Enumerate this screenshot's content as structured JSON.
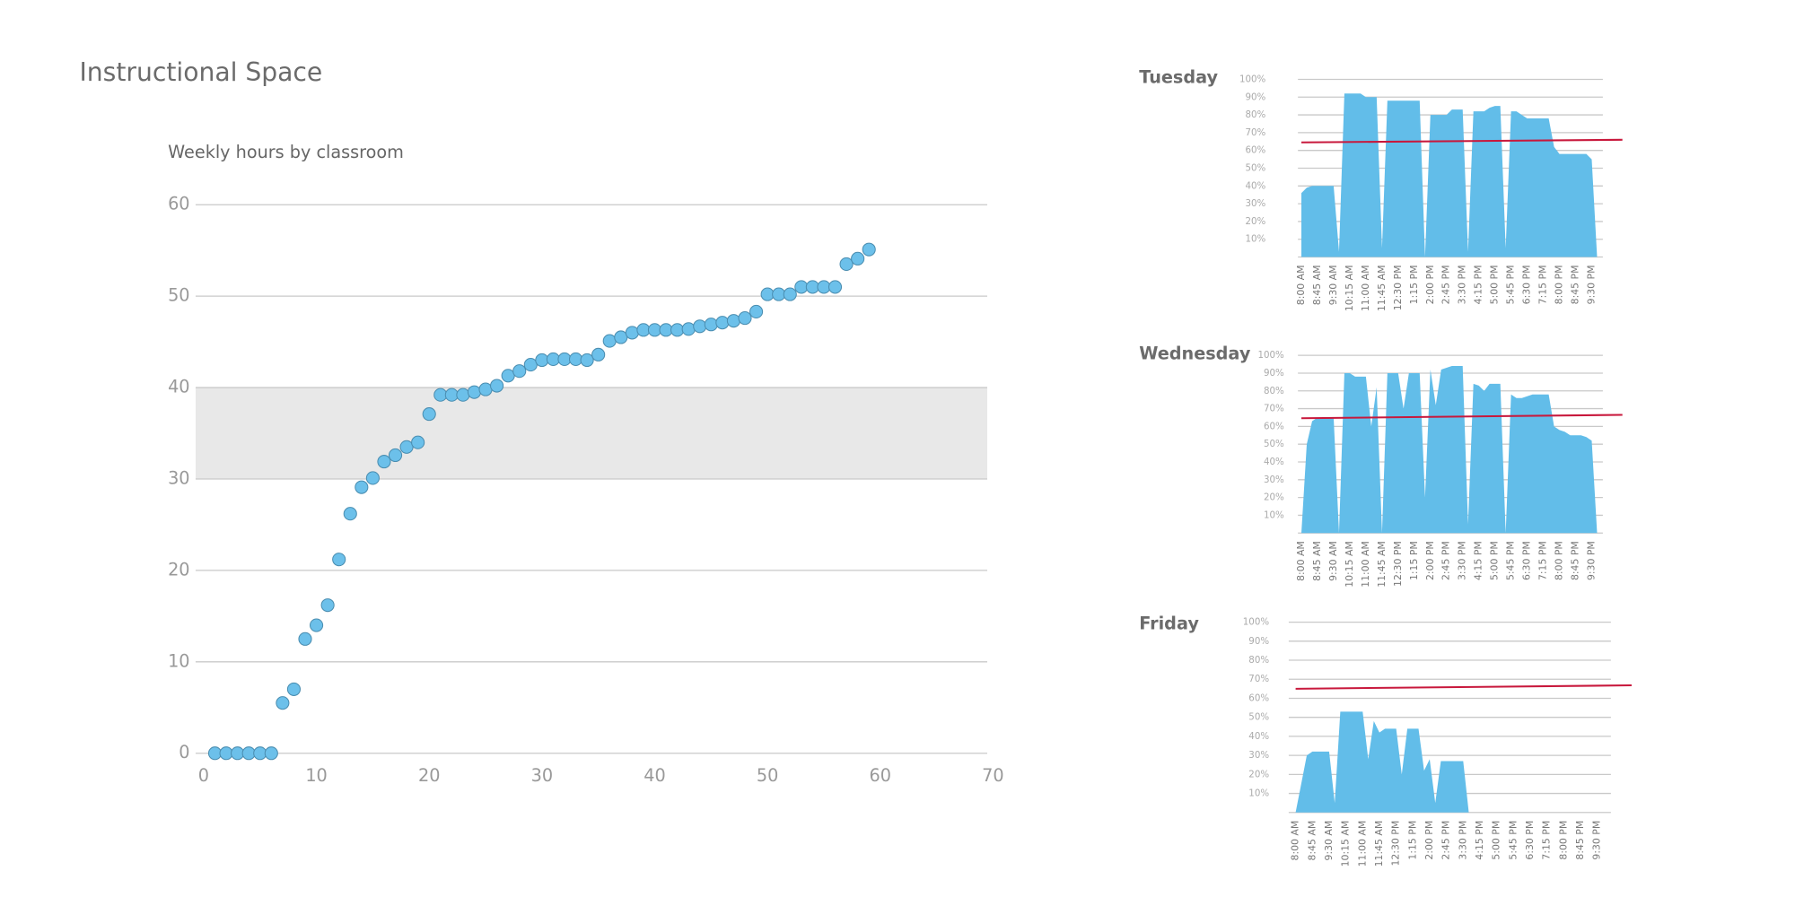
{
  "header": {
    "title": "Instructional Space"
  },
  "chart_data": [
    {
      "type": "scatter",
      "title": "Weekly hours by classroom",
      "x": [
        1,
        2,
        3,
        4,
        5,
        6,
        7,
        8,
        9,
        10,
        11,
        12,
        13,
        14,
        15,
        16,
        17,
        18,
        19,
        20,
        21,
        22,
        23,
        24,
        25,
        26,
        27,
        28,
        29,
        30,
        31,
        32,
        33,
        34,
        35,
        36,
        37,
        38,
        39,
        40,
        41,
        42,
        43,
        44,
        45,
        46,
        47,
        48,
        49,
        50,
        51,
        52,
        53,
        54,
        55,
        56,
        57,
        58,
        59
      ],
      "values": [
        0,
        0,
        0,
        0,
        0,
        0,
        5.5,
        7,
        12.5,
        14,
        16.2,
        21.2,
        26.2,
        29.1,
        30.1,
        31.9,
        32.6,
        33.5,
        34,
        37.1,
        39.2,
        39.2,
        39.2,
        39.5,
        39.8,
        40.2,
        41.3,
        41.8,
        42.5,
        43,
        43.1,
        43.1,
        43.1,
        43,
        43.6,
        45.1,
        45.5,
        46,
        46.3,
        46.3,
        46.3,
        46.3,
        46.4,
        46.7,
        46.9,
        47.1,
        47.3,
        47.6,
        48.3,
        50.2,
        50.2,
        50.2,
        51,
        51,
        51,
        51,
        53.5,
        54.1,
        55.1
      ],
      "color": "#6cc0ea",
      "xlim": [
        0,
        70
      ],
      "xticks": [
        0,
        10,
        20,
        30,
        40,
        50,
        60,
        70
      ],
      "ylim": [
        0,
        60
      ],
      "yticks": [
        0,
        10,
        20,
        30,
        40,
        50,
        60
      ],
      "grid": true,
      "band": {
        "range": [
          30,
          40
        ],
        "color": "#e8e8e8"
      }
    },
    {
      "type": "area",
      "title": "Tuesday",
      "categories": [
        "8:00 AM",
        null,
        null,
        "8:45 AM",
        null,
        null,
        "9:30 AM",
        null,
        null,
        "10:15 AM",
        null,
        null,
        "11:00 AM",
        null,
        null,
        "11:45 AM",
        null,
        null,
        "12:30 PM",
        null,
        null,
        "1:15 PM",
        null,
        null,
        "2:00 PM",
        null,
        null,
        "2:45 PM",
        null,
        null,
        "3:30 PM",
        null,
        null,
        "4:15 PM",
        null,
        null,
        "5:00 PM",
        null,
        null,
        "5:45 PM",
        null,
        null,
        "6:30 PM",
        null,
        null,
        "7:15 PM",
        null,
        null,
        "8:00 PM",
        null,
        null,
        "8:45 PM",
        null,
        null,
        "9:30 PM",
        null
      ],
      "values": [
        36,
        39,
        40,
        40,
        40,
        40,
        40,
        3,
        92,
        92,
        92,
        92,
        90,
        90,
        90,
        5,
        88,
        88,
        88,
        88,
        88,
        88,
        88,
        0,
        80,
        80,
        80,
        80,
        83,
        83,
        83,
        3,
        82,
        82,
        82,
        84,
        85,
        85,
        5,
        82,
        82,
        80,
        78,
        78,
        78,
        78,
        78,
        62,
        58,
        58,
        58,
        58,
        58,
        58,
        55,
        0
      ],
      "color": "#62bde9",
      "ylim": [
        0,
        100
      ],
      "yticks": [
        {
          "value": 10,
          "label": "10%"
        },
        {
          "value": 20,
          "label": "20%"
        },
        {
          "value": 30,
          "label": "30%"
        },
        {
          "value": 40,
          "label": "40%"
        },
        {
          "value": 50,
          "label": "50%"
        },
        {
          "value": 60,
          "label": "60%"
        },
        {
          "value": 70,
          "label": "70%"
        },
        {
          "value": 80,
          "label": "80%"
        },
        {
          "value": 90,
          "label": "90%"
        },
        {
          "value": 100,
          "label": "100%"
        }
      ],
      "grid": true,
      "reference_line": {
        "values": [
          64.5,
          66
        ],
        "color": "#c8183c"
      }
    },
    {
      "type": "area",
      "title": "Wednesday",
      "categories": [
        "8:00 AM",
        null,
        null,
        "8:45 AM",
        null,
        null,
        "9:30 AM",
        null,
        null,
        "10:15 AM",
        null,
        null,
        "11:00 AM",
        null,
        null,
        "11:45 AM",
        null,
        null,
        "12:30 PM",
        null,
        null,
        "1:15 PM",
        null,
        null,
        "2:00 PM",
        null,
        null,
        "2:45 PM",
        null,
        null,
        "3:30 PM",
        null,
        null,
        "4:15 PM",
        null,
        null,
        "5:00 PM",
        null,
        null,
        "5:45 PM",
        null,
        null,
        "6:30 PM",
        null,
        null,
        "7:15 PM",
        null,
        null,
        "8:00 PM",
        null,
        null,
        "8:45 PM",
        null,
        null,
        "9:30 PM",
        null
      ],
      "values": [
        0,
        50,
        63,
        65,
        65,
        65,
        65,
        0,
        90,
        90,
        88,
        88,
        88,
        60,
        82,
        0,
        90,
        90,
        90,
        70,
        90,
        90,
        90,
        20,
        92,
        72,
        92,
        93,
        94,
        94,
        94,
        5,
        84,
        83,
        80,
        84,
        84,
        84,
        0,
        78,
        76,
        76,
        77,
        78,
        78,
        78,
        78,
        60,
        58,
        57,
        55,
        55,
        55,
        54,
        52,
        0
      ],
      "color": "#62bde9",
      "ylim": [
        0,
        100
      ],
      "yticks": [
        {
          "value": 10,
          "label": "10%"
        },
        {
          "value": 20,
          "label": "20%"
        },
        {
          "value": 30,
          "label": "30%"
        },
        {
          "value": 40,
          "label": "40%"
        },
        {
          "value": 50,
          "label": "50%"
        },
        {
          "value": 60,
          "label": "60%"
        },
        {
          "value": 70,
          "label": "70%"
        },
        {
          "value": 80,
          "label": "80%"
        },
        {
          "value": 90,
          "label": "90%"
        },
        {
          "value": 100,
          "label": "100%"
        }
      ],
      "grid": true,
      "reference_line": {
        "values": [
          64.6,
          66.5
        ],
        "color": "#c8183c"
      }
    },
    {
      "type": "area",
      "title": "Friday",
      "categories": [
        "8:00 AM",
        null,
        null,
        "8:45 AM",
        null,
        null,
        "9:30 AM",
        null,
        null,
        "10:15 AM",
        null,
        null,
        "11:00 AM",
        null,
        null,
        "11:45 AM",
        null,
        null,
        "12:30 PM",
        null,
        null,
        "1:15 PM",
        null,
        null,
        "2:00 PM",
        null,
        null,
        "2:45 PM",
        null,
        null,
        "3:30 PM",
        null,
        null,
        "4:15 PM",
        null,
        null,
        "5:00 PM",
        null,
        null,
        "5:45 PM",
        null,
        null,
        "6:30 PM",
        null,
        null,
        "7:15 PM",
        null,
        null,
        "8:00 PM",
        null,
        null,
        "8:45 PM",
        null,
        null,
        "9:30 PM",
        null
      ],
      "values": [
        0,
        15,
        30,
        32,
        32,
        32,
        32,
        5,
        53,
        53,
        53,
        53,
        53,
        28,
        48,
        42,
        44,
        44,
        44,
        20,
        44,
        44,
        44,
        22,
        28,
        5,
        27,
        27,
        27,
        27,
        27,
        0,
        null,
        null,
        null,
        null,
        null,
        null,
        null,
        null,
        null,
        null,
        null,
        null,
        null,
        null,
        null,
        null,
        null,
        null,
        null,
        null,
        null,
        null,
        null,
        null
      ],
      "color": "#62bde9",
      "ylim": [
        0,
        100
      ],
      "yticks": [
        {
          "value": 10,
          "label": "10%"
        },
        {
          "value": 20,
          "label": "20%"
        },
        {
          "value": 30,
          "label": "30%"
        },
        {
          "value": 40,
          "label": "40%"
        },
        {
          "value": 50,
          "label": "50%"
        },
        {
          "value": 60,
          "label": "60%"
        },
        {
          "value": 70,
          "label": "70%"
        },
        {
          "value": 80,
          "label": "80%"
        },
        {
          "value": 90,
          "label": "90%"
        },
        {
          "value": 100,
          "label": "100%"
        }
      ],
      "grid": true,
      "reference_line": {
        "values": [
          65,
          66.8
        ],
        "color": "#c8183c"
      }
    }
  ]
}
